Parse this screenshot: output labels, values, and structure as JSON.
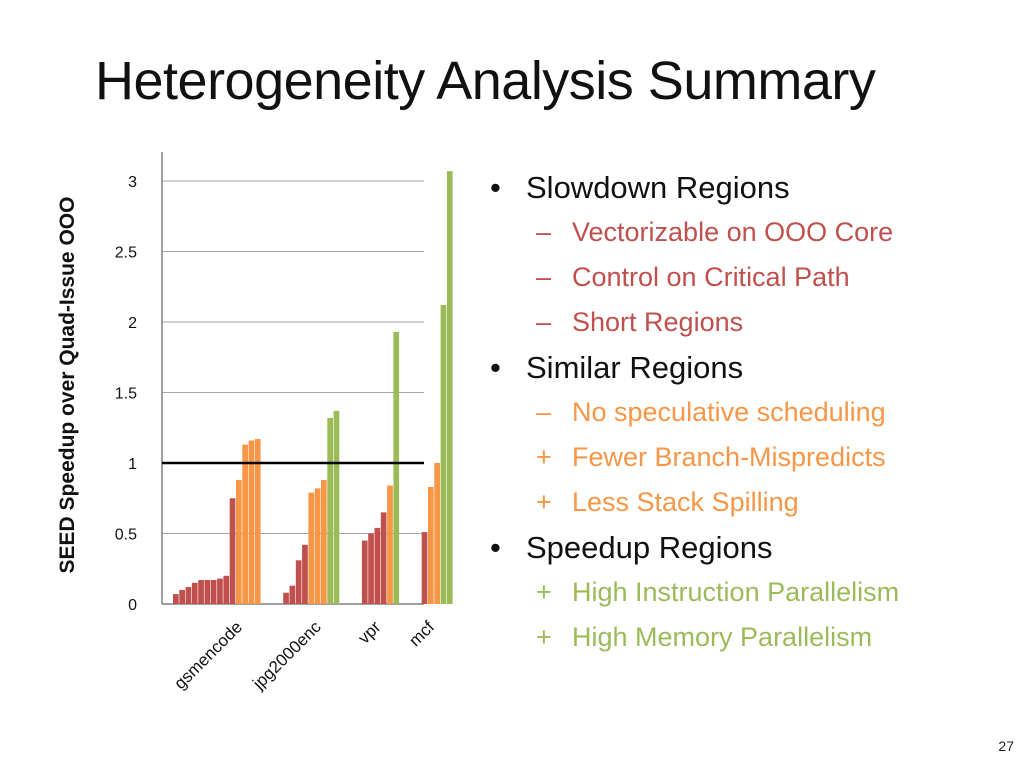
{
  "slide": {
    "title": "Heterogeneity Analysis Summary",
    "page_number": "27"
  },
  "colors": {
    "slowdown": "#c0504d",
    "similar": "#f79646",
    "speedup": "#9bbb59"
  },
  "bullets": [
    {
      "label": "Slowdown Regions",
      "color": "#c0504d",
      "items": [
        {
          "marker": "–",
          "text": "Vectorizable on OOO Core"
        },
        {
          "marker": "–",
          "text": "Control on Critical Path"
        },
        {
          "marker": "–",
          "text": "Short Regions"
        }
      ]
    },
    {
      "label": "Similar Regions",
      "color": "#f79646",
      "items": [
        {
          "marker": "–",
          "text": "No speculative scheduling"
        },
        {
          "marker": "+",
          "text": "Fewer Branch-Mispredicts"
        },
        {
          "marker": "+",
          "text": "Less Stack Spilling"
        }
      ]
    },
    {
      "label": "Speedup Regions",
      "color": "#9bbb59",
      "items": [
        {
          "marker": "+",
          "text": "High Instruction Parallelism"
        },
        {
          "marker": "+",
          "text": "High Memory Parallelism"
        }
      ]
    }
  ],
  "chart_data": {
    "type": "bar",
    "ylabel": "SEED Speedup over Quad-Issue OOO",
    "ylim": [
      0,
      3
    ],
    "yticks": [
      0,
      0.5,
      1,
      1.5,
      2,
      2.5,
      3
    ],
    "reference_line": 1,
    "grid": true,
    "groups": [
      {
        "name": "gsmencode",
        "bars": [
          {
            "value": 0.07,
            "class": "slowdown"
          },
          {
            "value": 0.1,
            "class": "slowdown"
          },
          {
            "value": 0.12,
            "class": "slowdown"
          },
          {
            "value": 0.15,
            "class": "slowdown"
          },
          {
            "value": 0.17,
            "class": "slowdown"
          },
          {
            "value": 0.17,
            "class": "slowdown"
          },
          {
            "value": 0.17,
            "class": "slowdown"
          },
          {
            "value": 0.18,
            "class": "slowdown"
          },
          {
            "value": 0.2,
            "class": "slowdown"
          },
          {
            "value": 0.75,
            "class": "slowdown"
          },
          {
            "value": 0.88,
            "class": "similar"
          },
          {
            "value": 1.13,
            "class": "similar"
          },
          {
            "value": 1.16,
            "class": "similar"
          },
          {
            "value": 1.17,
            "class": "similar"
          }
        ]
      },
      {
        "name": "jpg2000enc",
        "bars": [
          {
            "value": 0.08,
            "class": "slowdown"
          },
          {
            "value": 0.13,
            "class": "slowdown"
          },
          {
            "value": 0.31,
            "class": "slowdown"
          },
          {
            "value": 0.42,
            "class": "slowdown"
          },
          {
            "value": 0.79,
            "class": "similar"
          },
          {
            "value": 0.82,
            "class": "similar"
          },
          {
            "value": 0.88,
            "class": "similar"
          },
          {
            "value": 1.32,
            "class": "speedup"
          },
          {
            "value": 1.37,
            "class": "speedup"
          }
        ]
      },
      {
        "name": "vpr",
        "bars": [
          {
            "value": 0.45,
            "class": "slowdown"
          },
          {
            "value": 0.5,
            "class": "slowdown"
          },
          {
            "value": 0.54,
            "class": "slowdown"
          },
          {
            "value": 0.65,
            "class": "slowdown"
          },
          {
            "value": 0.84,
            "class": "similar"
          },
          {
            "value": 1.93,
            "class": "speedup"
          }
        ]
      },
      {
        "name": "mcf",
        "bars": [
          {
            "value": 0.51,
            "class": "slowdown"
          },
          {
            "value": 0.83,
            "class": "similar"
          },
          {
            "value": 1.0,
            "class": "similar"
          },
          {
            "value": 2.12,
            "class": "speedup"
          },
          {
            "value": 3.07,
            "class": "speedup"
          }
        ]
      }
    ]
  }
}
